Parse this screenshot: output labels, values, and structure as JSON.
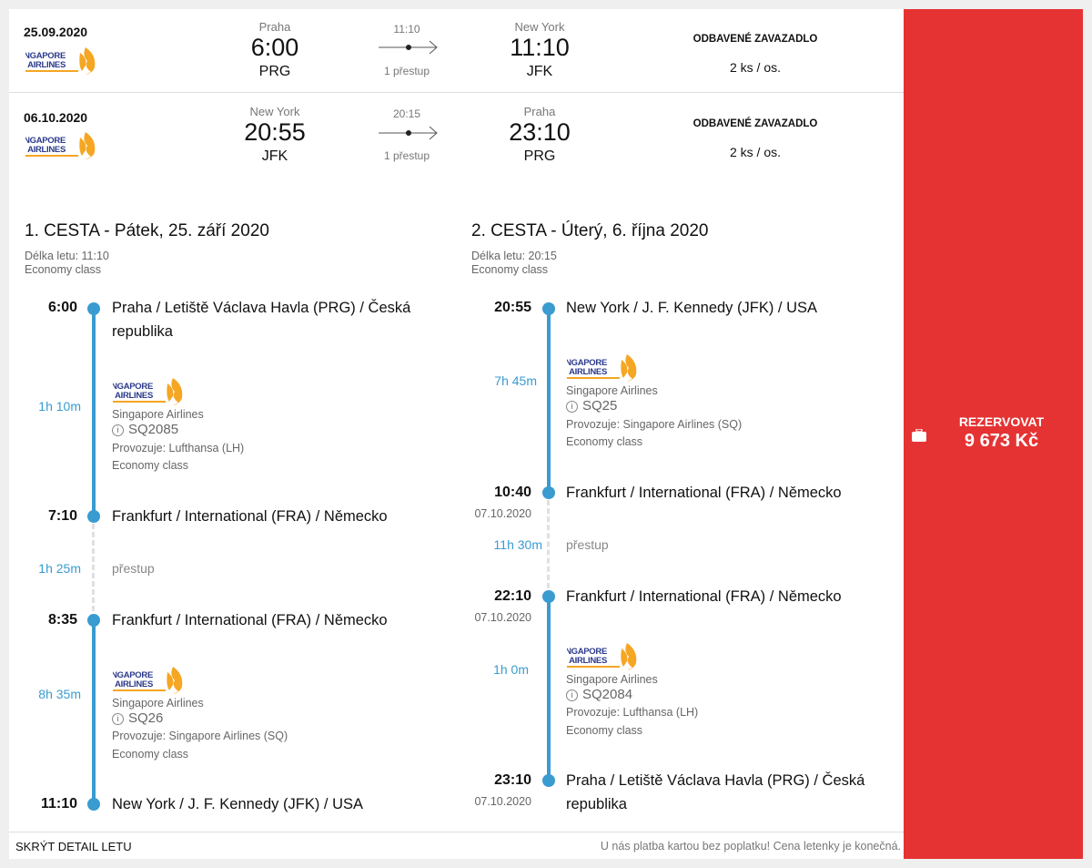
{
  "summary": [
    {
      "date": "25.09.2020",
      "from_city": "Praha",
      "dep": "6:00",
      "from": "PRG",
      "duration": "11:10",
      "stops": "1 přestup",
      "to_city": "New York",
      "arr": "11:10",
      "to": "JFK",
      "bag_title": "ODBAVENÉ ZAVAZADLO",
      "bag_value": "2 ks / os."
    },
    {
      "date": "06.10.2020",
      "from_city": "New York",
      "dep": "20:55",
      "from": "JFK",
      "duration": "20:15",
      "stops": "1 přestup",
      "to_city": "Praha",
      "arr": "23:10",
      "to": "PRG",
      "bag_title": "ODBAVENÉ ZAVAZADLO",
      "bag_value": "2 ks / os."
    }
  ],
  "airline_logo_text": "SINGAPORE AIRLINES",
  "journeys": [
    {
      "title": "1. CESTA - Pátek, 25. září 2020",
      "length": "Délka letu: 11:10",
      "class": "Economy class",
      "stops": [
        {
          "time": "6:00",
          "place": "Praha / Letiště Václava Havla (PRG) / Česká",
          "place2": "republika"
        },
        {
          "time": "7:10",
          "place": "Frankfurt / International (FRA) / Německo"
        },
        {
          "time": "8:35",
          "place": "Frankfurt / International (FRA) / Německo"
        },
        {
          "time": "11:10",
          "place": "New York / J. F. Kennedy (JFK) / USA"
        }
      ],
      "flights": [
        {
          "duration": "1h 10m",
          "airline": "Singapore Airlines",
          "number": "SQ2085",
          "operator": "Provozuje: Lufthansa (LH)",
          "class": "Economy class"
        },
        {
          "duration": "8h 35m",
          "airline": "Singapore Airlines",
          "number": "SQ26",
          "operator": "Provozuje: Singapore Airlines (SQ)",
          "class": "Economy class"
        }
      ],
      "transfer": {
        "duration": "1h 25m",
        "label": "přestup"
      }
    },
    {
      "title": "2. CESTA - Úterý, 6. října 2020",
      "length": "Délka letu: 20:15",
      "class": "Economy class",
      "stops": [
        {
          "time": "20:55",
          "place": "New York / J. F. Kennedy (JFK) / USA"
        },
        {
          "time": "10:40",
          "date": "07.10.2020",
          "place": "Frankfurt / International (FRA) / Německo"
        },
        {
          "time": "22:10",
          "date": "07.10.2020",
          "place": "Frankfurt / International (FRA) / Německo"
        },
        {
          "time": "23:10",
          "date": "07.10.2020",
          "place": "Praha / Letiště Václava Havla (PRG) / Česká",
          "place2": "republika"
        }
      ],
      "flights": [
        {
          "duration": "7h 45m",
          "airline": "Singapore Airlines",
          "number": "SQ25",
          "operator": "Provozuje: Singapore Airlines (SQ)",
          "class": "Economy class"
        },
        {
          "duration": "1h 0m",
          "airline": "Singapore Airlines",
          "number": "SQ2084",
          "operator": "Provozuje: Lufthansa (LH)",
          "class": "Economy class"
        }
      ],
      "transfer": {
        "duration": "11h 30m",
        "label": "přestup"
      }
    }
  ],
  "footer": {
    "hide_detail": "SKRÝT DETAIL LETU",
    "note": "U nás platba kartou bez poplatku! Cena letenky je konečná."
  },
  "book": {
    "label": "REZERVOVAT",
    "price": "9 673 Kč"
  },
  "colors": {
    "accent": "#e53333",
    "timeline": "#3a9bd0"
  }
}
